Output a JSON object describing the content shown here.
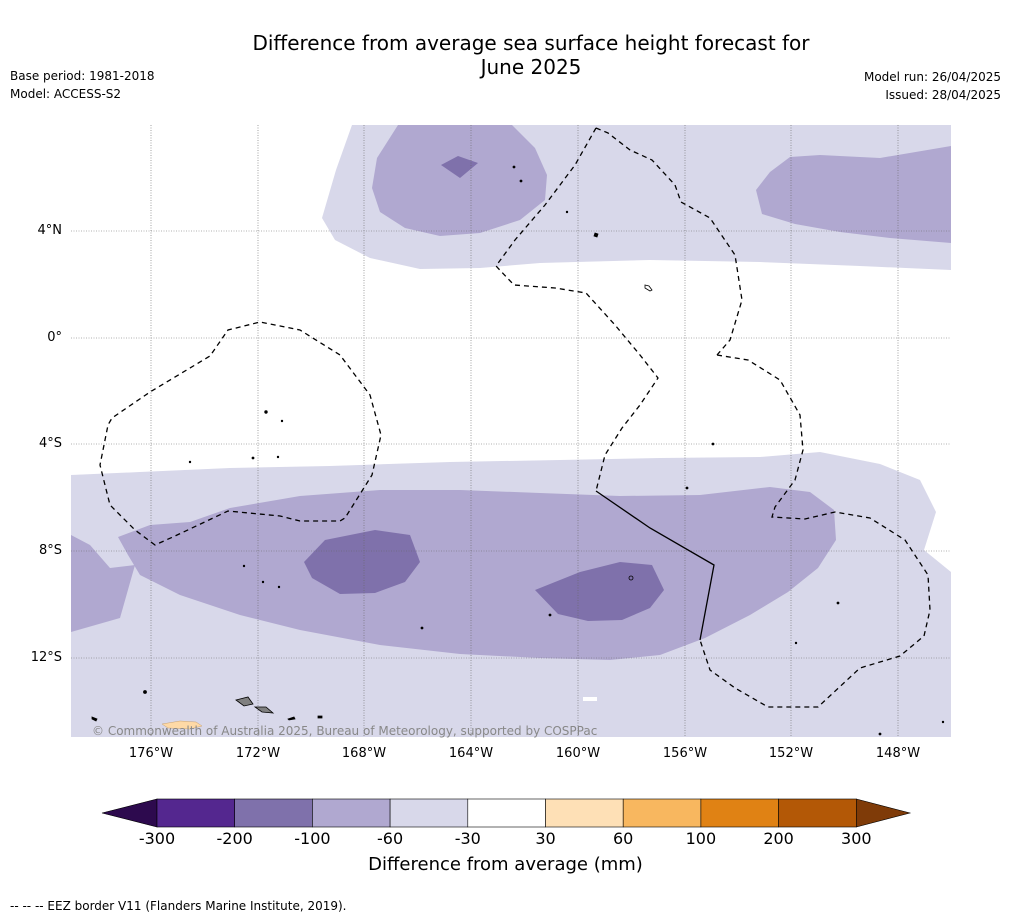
{
  "title_line1": "Difference from average sea surface height forecast for",
  "title_line2": "June 2025",
  "meta_left": {
    "base_period": "Base period: 1981-2018",
    "model": "Model: ACCESS-S2"
  },
  "meta_right": {
    "model_run": "Model run: 26/04/2025",
    "issued": "Issued: 28/04/2025"
  },
  "lat_labels": [
    "4°N",
    "0°",
    "4°S",
    "8°S",
    "12°S"
  ],
  "lon_labels": [
    "176°W",
    "172°W",
    "168°W",
    "164°W",
    "160°W",
    "156°W",
    "152°W",
    "148°W"
  ],
  "copyright": "© Commonwealth of Australia 2025, Bureau of Meteorology, supported by COSPPac",
  "colorbar": {
    "ticks": [
      "-300",
      "-200",
      "-100",
      "-60",
      "-30",
      "30",
      "60",
      "100",
      "200",
      "300"
    ],
    "colors": [
      "#2d0a4e",
      "#54278f",
      "#7f71ab",
      "#b0a8d0",
      "#d8d8ea",
      "#ffffff",
      "#fee0b6",
      "#f8b75f",
      "#e08214",
      "#b35806",
      "#7f3b08"
    ],
    "label": "Difference from average (mm)"
  },
  "footnote": "--  --  -- EEZ border V11 (Flanders Marine Institute, 2019)."
}
